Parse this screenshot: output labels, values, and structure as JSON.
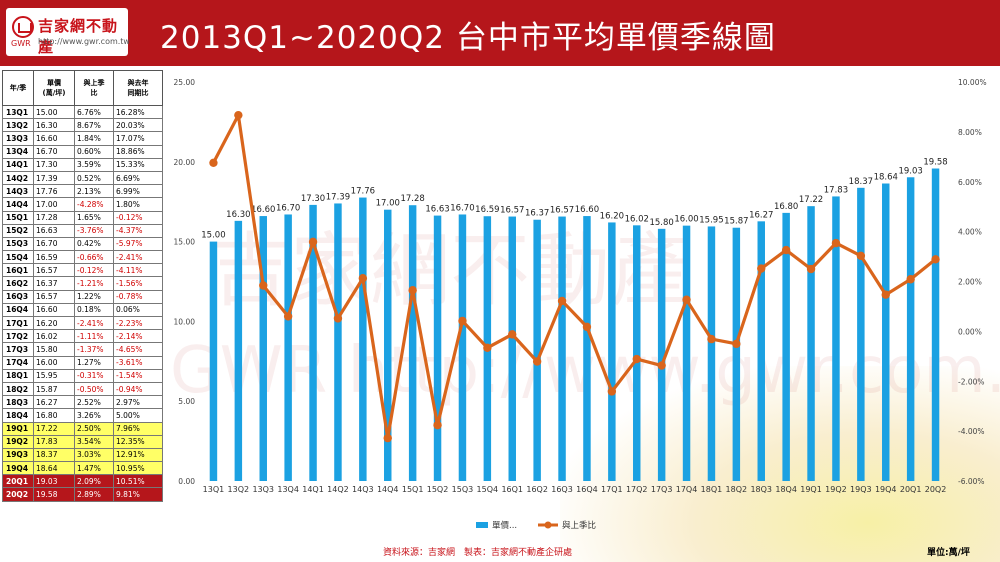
{
  "header": {
    "logo_name": "吉家網不動產",
    "logo_sub": "GWR",
    "logo_url": "http://www.gwr.com.tw",
    "title": "2013Q1~2020Q2 台中市平均單價季線圖"
  },
  "table": {
    "headers": [
      "年/季",
      "單價\n(萬/坪)",
      "與上季\n比",
      "與去年\n同期比"
    ],
    "rows": [
      [
        "13Q1",
        "15.00",
        "6.76%",
        "16.28%"
      ],
      [
        "13Q2",
        "16.30",
        "8.67%",
        "20.03%"
      ],
      [
        "13Q3",
        "16.60",
        "1.84%",
        "17.07%"
      ],
      [
        "13Q4",
        "16.70",
        "0.60%",
        "18.86%"
      ],
      [
        "14Q1",
        "17.30",
        "3.59%",
        "15.33%"
      ],
      [
        "14Q2",
        "17.39",
        "0.52%",
        "6.69%"
      ],
      [
        "14Q3",
        "17.76",
        "2.13%",
        "6.99%"
      ],
      [
        "14Q4",
        "17.00",
        "-4.28%",
        "1.80%"
      ],
      [
        "15Q1",
        "17.28",
        "1.65%",
        "-0.12%"
      ],
      [
        "15Q2",
        "16.63",
        "-3.76%",
        "-4.37%"
      ],
      [
        "15Q3",
        "16.70",
        "0.42%",
        "-5.97%"
      ],
      [
        "15Q4",
        "16.59",
        "-0.66%",
        "-2.41%"
      ],
      [
        "16Q1",
        "16.57",
        "-0.12%",
        "-4.11%"
      ],
      [
        "16Q2",
        "16.37",
        "-1.21%",
        "-1.56%"
      ],
      [
        "16Q3",
        "16.57",
        "1.22%",
        "-0.78%"
      ],
      [
        "16Q4",
        "16.60",
        "0.18%",
        "0.06%"
      ],
      [
        "17Q1",
        "16.20",
        "-2.41%",
        "-2.23%"
      ],
      [
        "17Q2",
        "16.02",
        "-1.11%",
        "-2.14%"
      ],
      [
        "17Q3",
        "15.80",
        "-1.37%",
        "-4.65%"
      ],
      [
        "17Q4",
        "16.00",
        "1.27%",
        "-3.61%"
      ],
      [
        "18Q1",
        "15.95",
        "-0.31%",
        "-1.54%"
      ],
      [
        "18Q2",
        "15.87",
        "-0.50%",
        "-0.94%"
      ],
      [
        "18Q3",
        "16.27",
        "2.52%",
        "2.97%"
      ],
      [
        "18Q4",
        "16.80",
        "3.26%",
        "5.00%"
      ],
      [
        "19Q1",
        "17.22",
        "2.50%",
        "7.96%"
      ],
      [
        "19Q2",
        "17.83",
        "3.54%",
        "12.35%"
      ],
      [
        "19Q3",
        "18.37",
        "3.03%",
        "12.91%"
      ],
      [
        "19Q4",
        "18.64",
        "1.47%",
        "10.95%"
      ],
      [
        "20Q1",
        "19.03",
        "2.09%",
        "10.51%"
      ],
      [
        "20Q2",
        "19.58",
        "2.89%",
        "9.81%"
      ]
    ]
  },
  "chart_data": {
    "type": "bar",
    "categories": [
      "13Q1",
      "13Q2",
      "13Q3",
      "13Q4",
      "14Q1",
      "14Q2",
      "14Q3",
      "14Q4",
      "15Q1",
      "15Q2",
      "15Q3",
      "15Q4",
      "16Q1",
      "16Q2",
      "16Q3",
      "16Q4",
      "17Q1",
      "17Q2",
      "17Q3",
      "17Q4",
      "18Q1",
      "18Q2",
      "18Q3",
      "18Q4",
      "19Q1",
      "19Q2",
      "19Q3",
      "19Q4",
      "20Q1",
      "20Q2"
    ],
    "series": [
      {
        "name": "單價...",
        "type": "bar",
        "axis": "left",
        "color": "#1ba1e2",
        "values": [
          15.0,
          16.3,
          16.6,
          16.7,
          17.3,
          17.39,
          17.76,
          17.0,
          17.28,
          16.63,
          16.7,
          16.59,
          16.57,
          16.37,
          16.57,
          16.6,
          16.2,
          16.02,
          15.8,
          16.0,
          15.95,
          15.87,
          16.27,
          16.8,
          17.22,
          17.83,
          18.37,
          18.64,
          19.03,
          19.58
        ]
      },
      {
        "name": "與上季比",
        "type": "line",
        "axis": "right",
        "color": "#d9651c",
        "values": [
          6.76,
          8.67,
          1.84,
          0.6,
          3.59,
          0.52,
          2.13,
          -4.28,
          1.65,
          -3.76,
          0.42,
          -0.66,
          -0.12,
          -1.21,
          1.22,
          0.18,
          -2.41,
          -1.11,
          -1.37,
          1.27,
          -0.31,
          -0.5,
          2.52,
          3.26,
          2.5,
          3.54,
          3.03,
          1.47,
          2.09,
          2.89
        ]
      }
    ],
    "ylim": [
      0,
      25
    ],
    "y_ticks": [
      "0.00",
      "5.00",
      "10.00",
      "15.00",
      "20.00",
      "25.00"
    ],
    "y2lim": [
      -6,
      10
    ],
    "y2_ticks": [
      "-6.00%",
      "-4.00%",
      "-2.00%",
      "0.00%",
      "2.00%",
      "4.00%",
      "6.00%",
      "8.00%",
      "10.00%"
    ],
    "data_labels": [
      "15.00",
      "16.30",
      "16.60",
      "16.70",
      "17.30",
      "17.39",
      "17.76",
      "17.00",
      "17.28",
      "16.63",
      "16.70",
      "16.59",
      "16.57",
      "16.37",
      "16.57",
      "16.60",
      "16.20",
      "16.02",
      "15.80",
      "16.00",
      "15.95",
      "15.87",
      "16.27",
      "16.80",
      "17.22",
      "17.83",
      "18.37",
      "18.64",
      "19.03",
      "19.58"
    ],
    "legend_position": "bottom",
    "grid": false
  },
  "footer": {
    "source": "資料來源：吉家網　製表：吉家網不動產企研處",
    "unit": "單位:萬/坪"
  },
  "watermark": {
    "brand": "吉家網不動產",
    "url": "GWR http://www.gwr.com.tw"
  }
}
